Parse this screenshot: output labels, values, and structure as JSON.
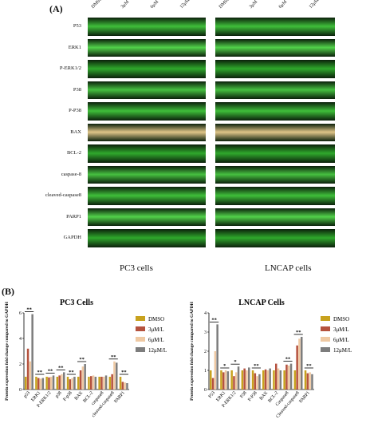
{
  "panelA": {
    "letter": "(A)",
    "concentrations": [
      "DMSO",
      "3μM",
      "6μM",
      "12μM"
    ],
    "proteins": [
      "P53",
      "ERK1",
      "P-ERK1/2",
      "P38",
      "P-P38",
      "BAX",
      "BCL-2",
      "caspase-8",
      "cleaved-caspase8",
      "PARP1",
      "GAPDH"
    ],
    "left_cells": "PC3 cells",
    "right_cells": "LNCAP cells"
  },
  "panelB": {
    "letter": "(B)"
  },
  "chart_data": [
    {
      "type": "bar",
      "title": "PC3 Cells",
      "ylabel": "Protein expression fold change compared to GAPDH",
      "ylim": [
        0,
        6
      ],
      "yticks": [
        "0",
        "2",
        "4",
        "6"
      ],
      "categories": [
        "p53",
        "ERK1",
        "P-ERK1/2",
        "p38",
        "P-p38",
        "BAX",
        "BCL-2",
        "caspase8",
        "cleaved-caspase8",
        "PARP1"
      ],
      "series": [
        {
          "name": "DMSO",
          "color": "#c8a21e",
          "values": [
            1,
            1,
            1,
            1,
            1,
            1,
            1,
            1,
            1,
            1
          ]
        },
        {
          "name": "3μM/L",
          "color": "#b5523e",
          "values": [
            3.2,
            0.9,
            0.95,
            1.1,
            0.8,
            1.5,
            1.05,
            1.0,
            1.2,
            0.6
          ]
        },
        {
          "name": "6μM/L",
          "color": "#efc9a3",
          "values": [
            2.2,
            0.85,
            1.0,
            1.2,
            0.9,
            1.8,
            1.1,
            1.0,
            2.2,
            0.55
          ]
        },
        {
          "name": "12μM/L",
          "color": "#7d7d7d",
          "values": [
            5.9,
            0.9,
            1.1,
            1.35,
            1.0,
            2.0,
            1.0,
            1.1,
            2.1,
            0.5
          ]
        }
      ],
      "significance": [
        "**",
        "**",
        "**",
        "**",
        "**",
        "**",
        "",
        "",
        "**",
        "**"
      ],
      "legend": "right"
    },
    {
      "type": "bar",
      "title": "LNCAP Cells",
      "ylabel": "Protein expression fold change compared to GAPDH",
      "ylim": [
        0,
        4
      ],
      "yticks": [
        "0",
        "1",
        "2",
        "3",
        "4"
      ],
      "categories": [
        "P53",
        "ERK1",
        "P-ERK1/2",
        "P38",
        "P-P38",
        "BAX",
        "BCL-2",
        "Caspase8",
        "Cleaved-caspase8",
        "PARP1"
      ],
      "series": [
        {
          "name": "DMSO",
          "color": "#c8a21e",
          "values": [
            1,
            1,
            1,
            1,
            1,
            1,
            1,
            1,
            1,
            1
          ]
        },
        {
          "name": "3μM/L",
          "color": "#b5523e",
          "values": [
            0.6,
            0.9,
            0.7,
            1.1,
            0.85,
            1.05,
            1.35,
            1.3,
            2.3,
            0.85
          ]
        },
        {
          "name": "6μM/L",
          "color": "#efc9a3",
          "values": [
            2.0,
            1.0,
            0.9,
            1.0,
            0.7,
            1.0,
            1.1,
            1.25,
            2.65,
            0.9
          ]
        },
        {
          "name": "12μM/L",
          "color": "#7d7d7d",
          "values": [
            3.4,
            0.95,
            1.2,
            1.15,
            0.8,
            1.1,
            1.0,
            1.35,
            2.75,
            0.8
          ]
        }
      ],
      "significance": [
        "**",
        "*",
        "*",
        "",
        "**",
        "",
        "",
        "**",
        "**",
        "**"
      ],
      "legend": "right"
    }
  ]
}
